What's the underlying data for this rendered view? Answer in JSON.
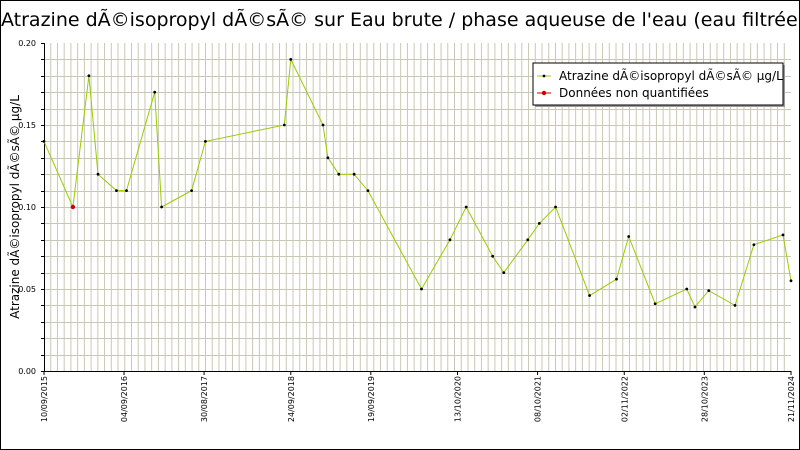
{
  "chart_data": {
    "type": "line",
    "title": "Atrazine dÃ©isopropyl dÃ©sÃ© sur Eau brute / phase aqueuse de l'eau (eau filtrée)",
    "ylabel": "Atrazine dÃ©isopropyl dÃ©sÃ© µg/L",
    "xlabel": "",
    "ylim": [
      0,
      0.2
    ],
    "yticks": [
      "0.00",
      "0.05",
      "0.10",
      "0.15",
      "0.20"
    ],
    "xlim": [
      "2015-09-10",
      "2024-11-21"
    ],
    "xticks": [
      {
        "date": "2015-09-10",
        "label": "10/09/2015"
      },
      {
        "date": "2016-09-04",
        "label": "04/09/2016"
      },
      {
        "date": "2017-08-30",
        "label": "30/08/2017"
      },
      {
        "date": "2018-09-24",
        "label": "24/09/2018"
      },
      {
        "date": "2019-09-19",
        "label": "19/09/2019"
      },
      {
        "date": "2020-10-13",
        "label": "13/10/2020"
      },
      {
        "date": "2021-10-08",
        "label": "08/10/2021"
      },
      {
        "date": "2022-11-02",
        "label": "02/11/2022"
      },
      {
        "date": "2023-10-28",
        "label": "28/10/2023"
      },
      {
        "date": "2024-11-21",
        "label": "21/11/2024"
      }
    ],
    "grid": true,
    "legend_position": "top-right",
    "series": [
      {
        "name": "Atrazine dÃ©isopropyl dÃ©sÃ© µg/L",
        "color": "#99cc00",
        "marker_color": "#000000",
        "points": [
          {
            "x": "2015-09-10",
            "y": 0.14
          },
          {
            "x": "2016-01-18",
            "y": 0.1
          },
          {
            "x": "2016-03-30",
            "y": 0.18
          },
          {
            "x": "2016-05-10",
            "y": 0.12
          },
          {
            "x": "2016-08-01",
            "y": 0.11
          },
          {
            "x": "2016-09-15",
            "y": 0.11
          },
          {
            "x": "2017-01-20",
            "y": 0.17
          },
          {
            "x": "2017-02-20",
            "y": 0.1
          },
          {
            "x": "2017-07-05",
            "y": 0.11
          },
          {
            "x": "2017-09-05",
            "y": 0.14
          },
          {
            "x": "2018-08-26",
            "y": 0.15
          },
          {
            "x": "2018-09-24",
            "y": 0.19
          },
          {
            "x": "2019-02-16",
            "y": 0.15
          },
          {
            "x": "2019-03-10",
            "y": 0.13
          },
          {
            "x": "2019-04-28",
            "y": 0.12
          },
          {
            "x": "2019-07-06",
            "y": 0.12
          },
          {
            "x": "2019-09-06",
            "y": 0.11
          },
          {
            "x": "2020-05-04",
            "y": 0.05
          },
          {
            "x": "2020-09-09",
            "y": 0.08
          },
          {
            "x": "2020-11-21",
            "y": 0.1
          },
          {
            "x": "2021-03-20",
            "y": 0.07
          },
          {
            "x": "2021-05-09",
            "y": 0.06
          },
          {
            "x": "2021-08-25",
            "y": 0.08
          },
          {
            "x": "2021-10-16",
            "y": 0.09
          },
          {
            "x": "2021-12-28",
            "y": 0.1
          },
          {
            "x": "2022-05-30",
            "y": 0.046
          },
          {
            "x": "2022-09-28",
            "y": 0.056
          },
          {
            "x": "2022-11-22",
            "y": 0.082
          },
          {
            "x": "2023-03-21",
            "y": 0.041
          },
          {
            "x": "2023-08-10",
            "y": 0.05
          },
          {
            "x": "2023-09-16",
            "y": 0.039
          },
          {
            "x": "2023-11-17",
            "y": 0.049
          },
          {
            "x": "2024-03-14",
            "y": 0.04
          },
          {
            "x": "2024-06-07",
            "y": 0.077
          },
          {
            "x": "2024-10-16",
            "y": 0.083
          },
          {
            "x": "2024-11-21",
            "y": 0.055
          }
        ]
      },
      {
        "name": "Données non quantifiées",
        "color": "#cc0000",
        "marker_color": "#cc0000",
        "points": [
          {
            "x": "2016-01-18",
            "y": 0.1
          }
        ]
      }
    ]
  }
}
